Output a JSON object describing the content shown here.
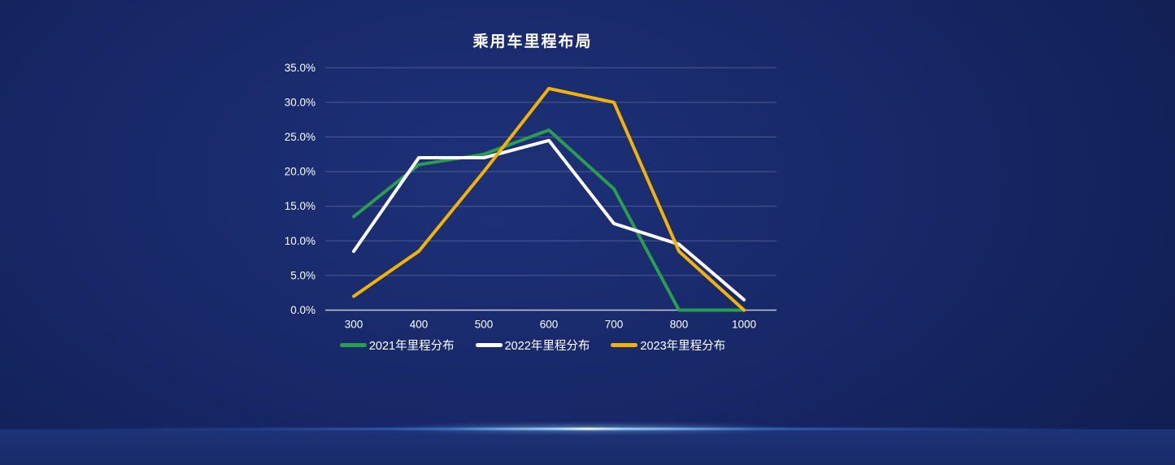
{
  "chart_data": {
    "type": "line",
    "title": "乘用车里程布局",
    "categories": [
      "300",
      "400",
      "500",
      "600",
      "700",
      "800",
      "1000"
    ],
    "series": [
      {
        "name": "2021年里程分布",
        "color": "#2a9d4e",
        "values": [
          13.5,
          21,
          22.5,
          26,
          17.5,
          0,
          0
        ]
      },
      {
        "name": "2022年里程分布",
        "color": "#ffffff",
        "values": [
          8.5,
          22,
          22,
          24.5,
          12.5,
          9.5,
          1.5
        ]
      },
      {
        "name": "2023年里程分布",
        "color": "#f5b301",
        "values": [
          2,
          8.5,
          20,
          32,
          30,
          8.5,
          0
        ]
      }
    ],
    "xlabel": "",
    "ylabel": "",
    "ylim": [
      0,
      35
    ],
    "y_tick_step": 5,
    "y_tick_labels": [
      "0.0%",
      "5.0%",
      "10.0%",
      "15.0%",
      "20.0%",
      "25.0%",
      "30.0%",
      "35.0%"
    ],
    "grid": true,
    "legend_position": "bottom"
  },
  "style": {
    "grid_color": "rgba(172,178,210,0.35)",
    "axis_color": "#c2c7d9",
    "tick_label_color": "#ffffff",
    "line_width": 4
  }
}
